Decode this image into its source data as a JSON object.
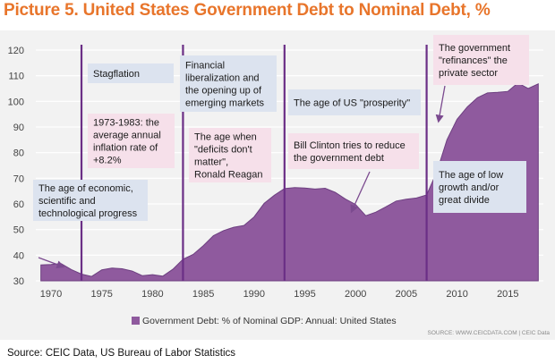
{
  "title": "Picture 5. United States Government Debt to Nominal Debt, %",
  "source_note": "Source: CEIC Data, US Bureau of Labor Statistics",
  "credit": "SOURCE: WWW.CEICDATA.COM | CEIC Data",
  "colors": {
    "fill": "#8f5a9e",
    "line": "#6d3f80",
    "blue_box": "#dce3ef",
    "pink_box": "#f6e0ea",
    "title": "#e8752b",
    "arrow": "#7b4a8f"
  },
  "annotations": [
    {
      "id": "stagflation",
      "lines": [
        "Stagflation"
      ],
      "color": "blue"
    },
    {
      "id": "inflation",
      "lines": [
        "1973-1983: the",
        "average annual",
        "inflation rate of",
        "+8.2%"
      ],
      "color": "pink"
    },
    {
      "id": "econ",
      "lines": [
        "The age of economic,",
        "scientific and",
        "technological progress"
      ],
      "color": "blue"
    },
    {
      "id": "financial",
      "lines": [
        "Financial",
        "liberalization and",
        "the opening up of",
        "emerging markets"
      ],
      "color": "blue"
    },
    {
      "id": "deficits",
      "lines": [
        "The age when",
        "\"deficits don't",
        "matter\",",
        "Ronald Reagan"
      ],
      "color": "pink"
    },
    {
      "id": "prosperity",
      "lines": [
        "The age of US \"prosperity\""
      ],
      "color": "blue"
    },
    {
      "id": "clinton",
      "lines": [
        "Bill Clinton tries to reduce",
        "the government debt"
      ],
      "color": "pink"
    },
    {
      "id": "refinances",
      "lines": [
        "The government",
        "\"refinances\" the",
        "private sector"
      ],
      "color": "pink"
    },
    {
      "id": "lowgrowth",
      "lines": [
        "The age of low",
        "growth and/or",
        "great divide"
      ],
      "color": "blue"
    }
  ],
  "chart_data": {
    "type": "area",
    "title": "Picture 5. United States Government Debt to Nominal Debt, %",
    "xlabel": "",
    "ylabel": "",
    "xlim": [
      1968.5,
      2018.5
    ],
    "ylim": [
      30,
      120
    ],
    "x_ticks": [
      1970,
      1975,
      1980,
      1985,
      1990,
      1995,
      2000,
      2005,
      2010,
      2015
    ],
    "y_ticks": [
      30,
      40,
      50,
      60,
      70,
      80,
      90,
      100,
      110,
      120
    ],
    "grid": true,
    "vertical_markers": [
      1973,
      1983,
      1993,
      2007
    ],
    "legend_position": "bottom-left",
    "series": [
      {
        "name": "Government Debt: % of Nominal GDP: Annual: United States",
        "x": [
          1969,
          1970,
          1971,
          1972,
          1973,
          1974,
          1975,
          1976,
          1977,
          1978,
          1979,
          1980,
          1981,
          1982,
          1983,
          1984,
          1985,
          1986,
          1987,
          1988,
          1989,
          1990,
          1991,
          1992,
          1993,
          1994,
          1995,
          1996,
          1997,
          1998,
          1999,
          2000,
          2001,
          2002,
          2003,
          2004,
          2005,
          2006,
          2007,
          2008,
          2009,
          2010,
          2011,
          2012,
          2013,
          2014,
          2015,
          2016,
          2017,
          2018
        ],
        "values": [
          36.2,
          36.4,
          36.7,
          34.4,
          32.6,
          31.7,
          34.3,
          35.0,
          34.7,
          33.8,
          32.0,
          32.4,
          31.8,
          34.5,
          38.4,
          40.3,
          43.7,
          47.6,
          49.6,
          50.9,
          51.6,
          54.9,
          60.2,
          63.4,
          66.0,
          66.4,
          66.2,
          65.8,
          66.1,
          64.5,
          61.9,
          59.8,
          55.4,
          56.8,
          58.9,
          61.1,
          61.8,
          62.3,
          63.5,
          72.4,
          85.0,
          93.0,
          97.8,
          101.4,
          103.3,
          103.5,
          103.9,
          107.2,
          105.0,
          106.8
        ]
      }
    ]
  }
}
